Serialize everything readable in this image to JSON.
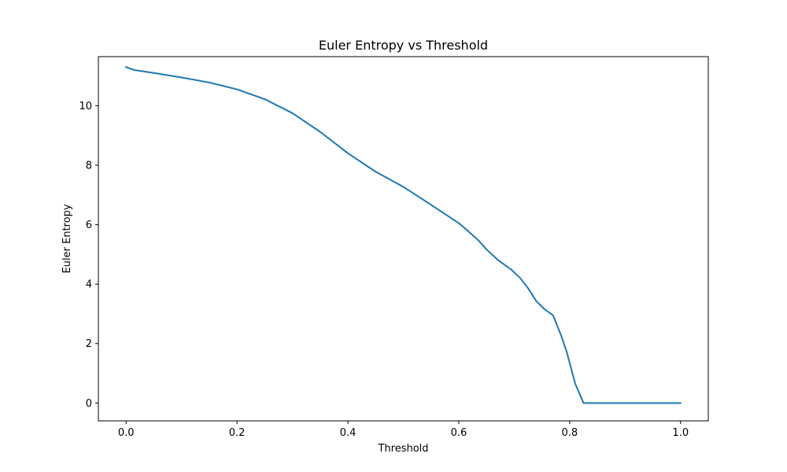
{
  "chart_data": {
    "type": "line",
    "title": "Euler Entropy vs Threshold",
    "xlabel": "Threshold",
    "ylabel": "Euler Entropy",
    "xlim": [
      -0.05,
      1.05
    ],
    "ylim": [
      -0.6,
      11.65
    ],
    "xticks": [
      0.0,
      0.2,
      0.4,
      0.6,
      0.8,
      1.0
    ],
    "xtick_labels": [
      "0.0",
      "0.2",
      "0.4",
      "0.6",
      "0.8",
      "1.0"
    ],
    "yticks": [
      0,
      2,
      4,
      6,
      8,
      10
    ],
    "ytick_labels": [
      "0",
      "2",
      "4",
      "6",
      "8",
      "10"
    ],
    "grid": false,
    "legend": "none",
    "line_color": "#1f77b4",
    "series": [
      {
        "x": [
          0.0,
          0.015,
          0.05,
          0.1,
          0.15,
          0.2,
          0.25,
          0.3,
          0.35,
          0.4,
          0.45,
          0.5,
          0.535,
          0.57,
          0.6,
          0.62,
          0.635,
          0.65,
          0.67,
          0.695,
          0.71,
          0.725,
          0.74,
          0.755,
          0.77,
          0.785,
          0.795,
          0.81,
          0.825,
          0.85,
          0.9,
          0.95,
          1.0
        ],
        "y": [
          11.3,
          11.2,
          11.1,
          10.95,
          10.78,
          10.55,
          10.22,
          9.75,
          9.12,
          8.4,
          7.78,
          7.27,
          6.85,
          6.42,
          6.05,
          5.73,
          5.48,
          5.17,
          4.82,
          4.48,
          4.22,
          3.86,
          3.42,
          3.15,
          2.95,
          2.25,
          1.7,
          0.65,
          0.0,
          0.0,
          0.0,
          0.0,
          0.0
        ]
      }
    ]
  }
}
